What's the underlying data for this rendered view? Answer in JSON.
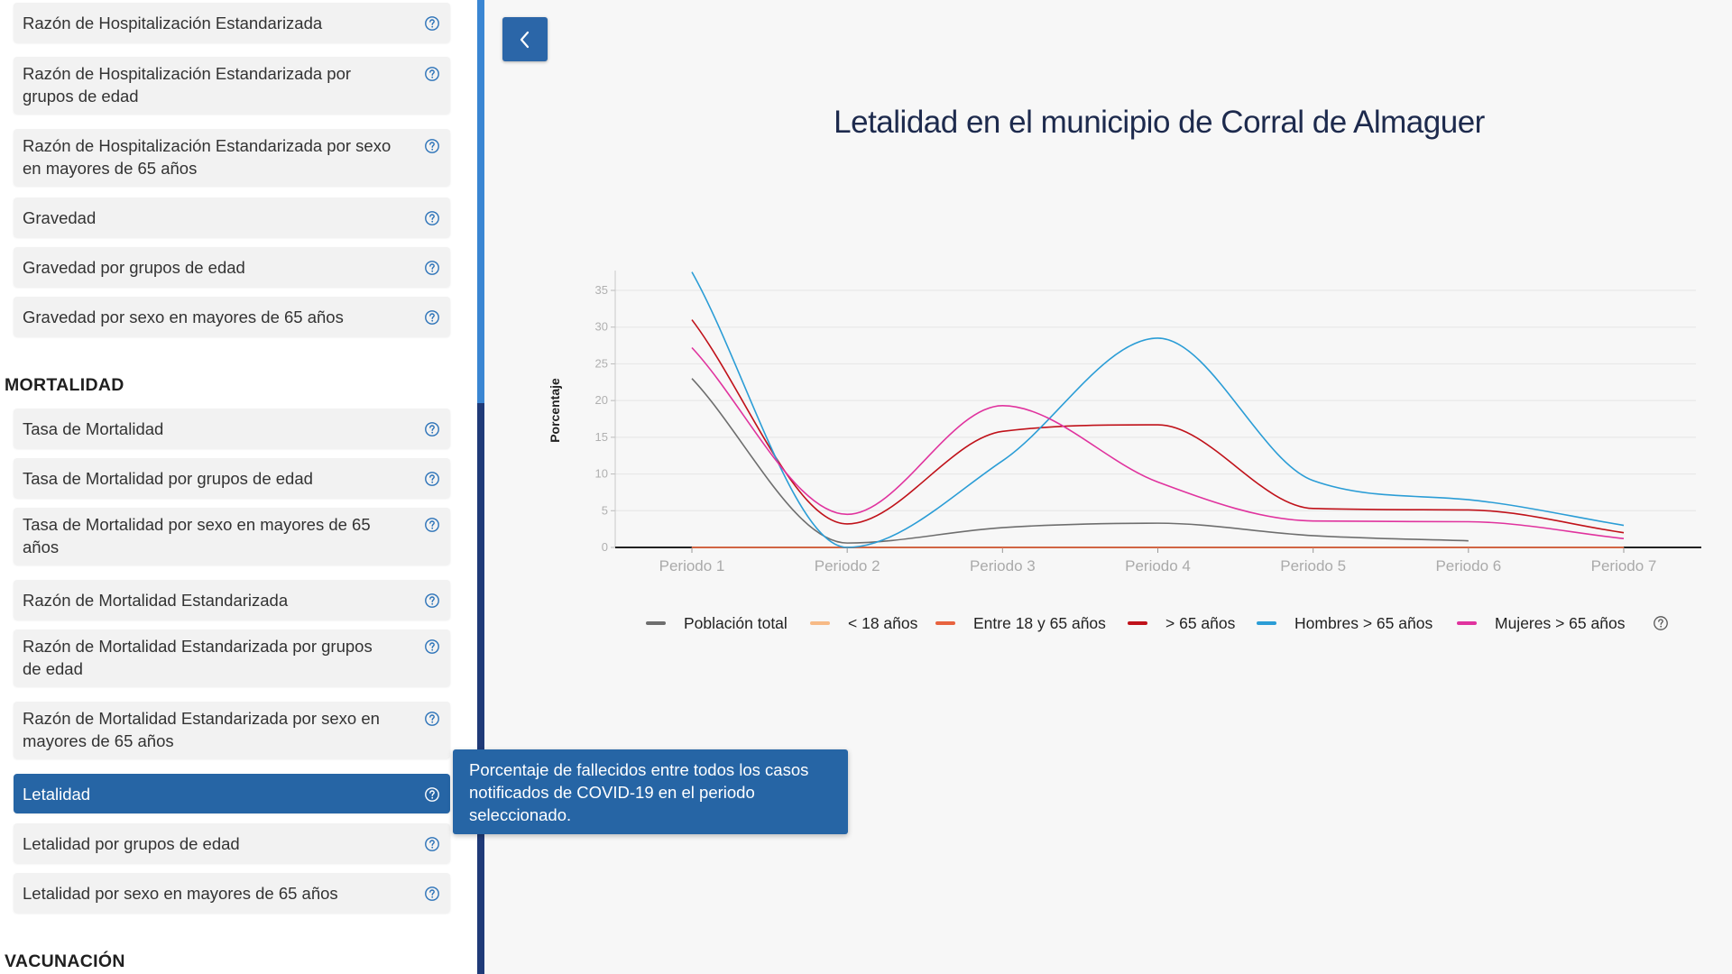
{
  "sidebar": {
    "items_top": [
      {
        "label": "Razón de Hospitalización Estandarizada"
      },
      {
        "label": "Razón de Hospitalización Estandarizada por grupos de edad"
      },
      {
        "label": "Razón de Hospitalización Estandarizada por sexo en mayores de 65 años"
      },
      {
        "label": "Gravedad"
      },
      {
        "label": "Gravedad por grupos de edad"
      },
      {
        "label": "Gravedad por sexo en mayores de 65 años"
      }
    ],
    "section_mortalidad": "MORTALIDAD",
    "items_mortalidad": [
      {
        "label": "Tasa de Mortalidad"
      },
      {
        "label": "Tasa de Mortalidad por grupos de edad"
      },
      {
        "label": "Tasa de Mortalidad por sexo en mayores de 65 años"
      },
      {
        "label": "Razón de Mortalidad Estandarizada"
      },
      {
        "label": "Razón de Mortalidad Estandarizada por grupos de edad"
      },
      {
        "label": "Razón de Mortalidad Estandarizada por sexo en mayores de 65 años"
      },
      {
        "label": "Letalidad",
        "active": true
      },
      {
        "label": "Letalidad por grupos de edad"
      },
      {
        "label": "Letalidad por sexo en mayores de 65 años"
      }
    ],
    "section_vacunacion": "VACUNACIÓN"
  },
  "tooltip": {
    "text": "Porcentaje de fallecidos entre todos los casos notificados de COVID-19 en el periodo seleccionado."
  },
  "back_button": {
    "icon": "chevron-left-icon"
  },
  "colors": {
    "accent": "#2665a5",
    "sidebar_active": "#2665a5",
    "scroll_track": "#1f3a78",
    "scroll_thumb": "#3a86d3"
  },
  "chart_data": {
    "type": "line",
    "title": "Letalidad en el municipio de Corral de Almaguer",
    "xlabel": "",
    "ylabel": "Porcentaje",
    "categories": [
      "Periodo 1",
      "Periodo 2",
      "Periodo 3",
      "Periodo 4",
      "Periodo 5",
      "Periodo 6",
      "Periodo 7"
    ],
    "ylim": [
      0,
      37
    ],
    "yticks": [
      0,
      5,
      10,
      15,
      20,
      25,
      30,
      35
    ],
    "grid": true,
    "legend_position": "bottom",
    "series": [
      {
        "name": "Población total",
        "color": "#6e6e6e",
        "values": [
          23,
          0.6,
          2.7,
          3.3,
          1.6,
          0.9,
          null
        ]
      },
      {
        "name": "< 18 años",
        "color": "#f7ba86",
        "values": [
          0,
          0,
          0,
          0,
          0,
          0,
          0
        ]
      },
      {
        "name": "Entre 18 y 65 años",
        "color": "#e8633f",
        "values": [
          0,
          0,
          0,
          0,
          0,
          0,
          0
        ]
      },
      {
        "name": "> 65 años",
        "color": "#c0121a",
        "values": [
          31,
          3.2,
          15.8,
          16.7,
          5.3,
          5.1,
          2
        ]
      },
      {
        "name": "Hombres > 65 años",
        "color": "#2b9dd6",
        "values": [
          37.5,
          0,
          11.8,
          28.5,
          9.1,
          6.5,
          3
        ]
      },
      {
        "name": "Mujeres > 65 años",
        "color": "#e0339e",
        "values": [
          27.2,
          4.5,
          19.3,
          8.9,
          3.6,
          3.5,
          1.2
        ]
      }
    ]
  }
}
